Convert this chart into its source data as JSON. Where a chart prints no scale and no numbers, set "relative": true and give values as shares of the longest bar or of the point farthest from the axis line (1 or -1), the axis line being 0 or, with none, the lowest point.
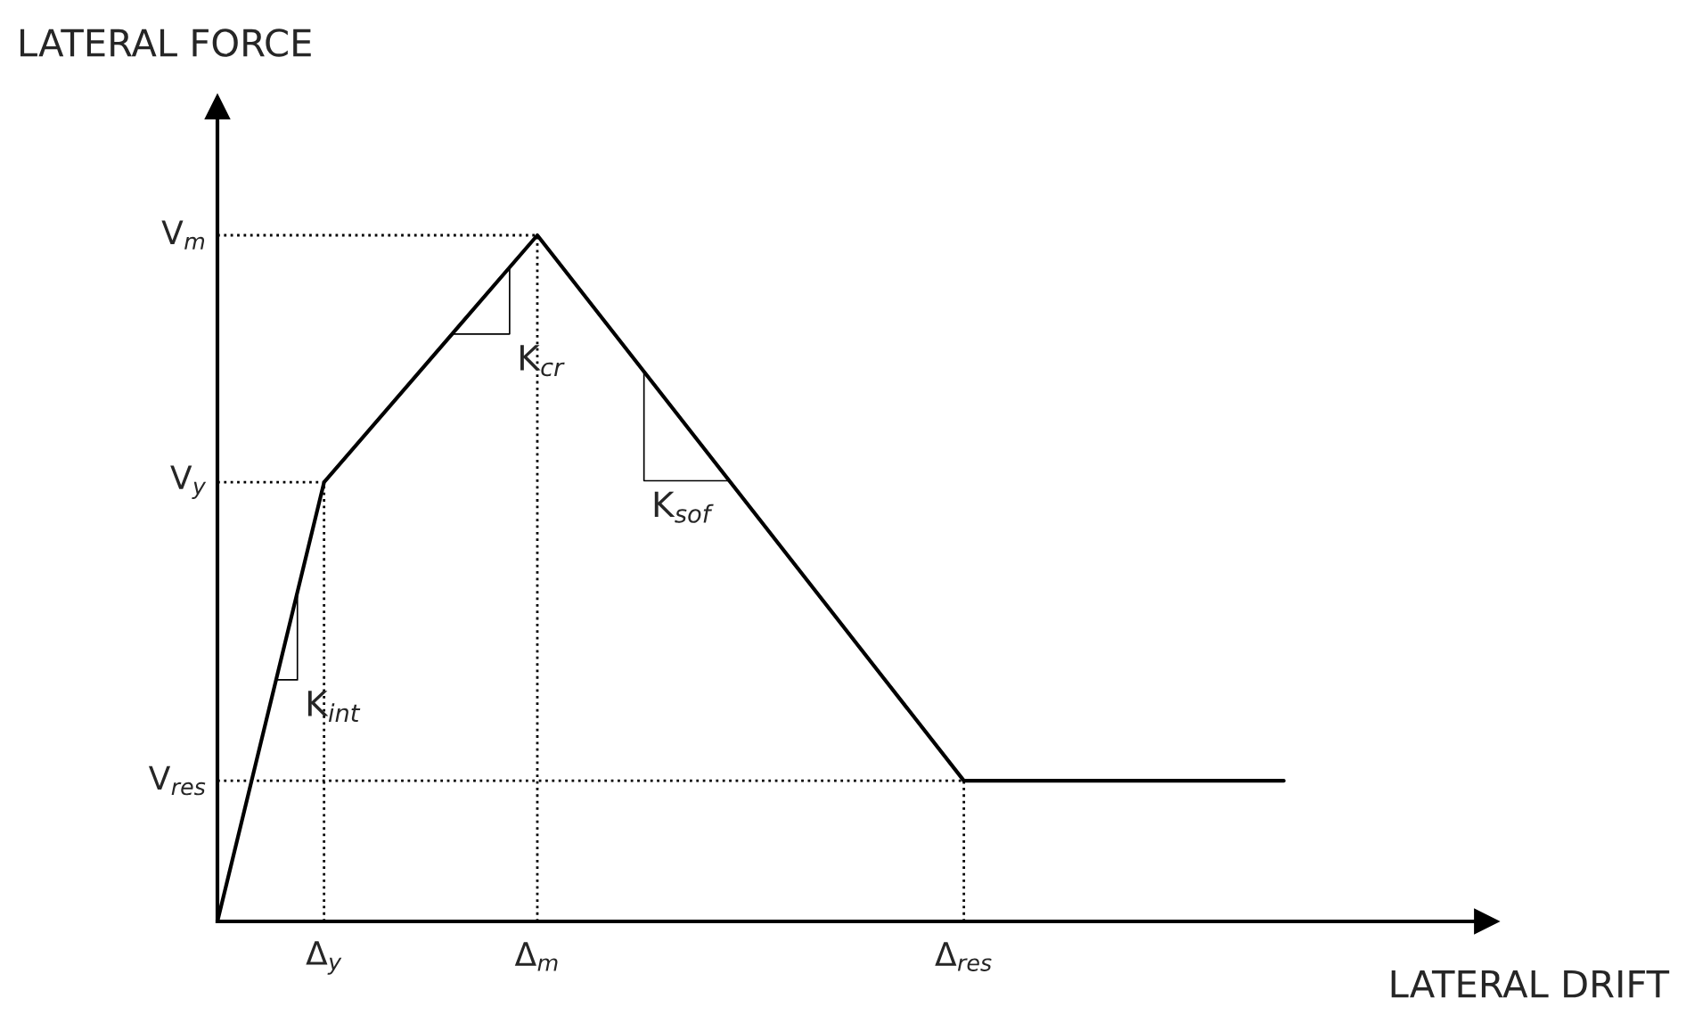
{
  "chart_data": {
    "type": "line",
    "relative": true,
    "color": "#000000",
    "xlabel": "LATERAL DRIFT",
    "ylabel": "LATERAL FORCE",
    "categories": [
      null,
      "Δ$_{y}$",
      null,
      "Δ$_{m}$",
      null,
      null,
      null,
      "Δ$_{res}$",
      null,
      null,
      null,
      null
    ],
    "values": [
      0,
      0.64,
      null,
      1.0,
      null,
      null,
      null,
      0.205,
      null,
      null,
      0.205,
      null
    ],
    "ref_lines": [
      {
        "axis": "y",
        "value": 0.205,
        "label": "V$_{res}$",
        "line_style": "dotted"
      },
      {
        "axis": "y",
        "value": 0.64,
        "label": "V$_{y}$",
        "line_style": "dotted"
      },
      {
        "axis": "y",
        "value": 1.0,
        "label": "V$_{m}$",
        "line_style": "dotted"
      }
    ],
    "annotations": [
      "K$_{int}$",
      "K$_{cr}$",
      "K$_{sof}$"
    ],
    "grid": "x",
    "legend": false,
    "marker": "none",
    "line_style": "solid"
  }
}
